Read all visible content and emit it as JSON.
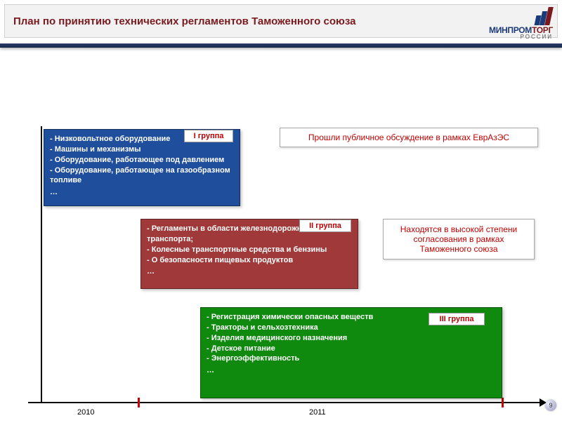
{
  "header": {
    "title": "План по принятию технических регламентов Таможенного союза"
  },
  "logo": {
    "line1a": "МИНПРОМ",
    "line1b": "ТОРГ",
    "sub": "РОССИИ"
  },
  "timeline": {
    "years": {
      "y2010": "2010",
      "y2011": "2011"
    }
  },
  "groups": {
    "g1": {
      "tag": "I группа",
      "items": [
        "Низковольтное оборудование",
        "Машины и механизмы",
        "Оборудование, работающее под давлением",
        "Оборудование, работающее на газообразном топливе"
      ],
      "more": "…",
      "status": "Прошли публичное обсуждение в рамках ЕврАзЭС",
      "bg": "#1f4e9c"
    },
    "g2": {
      "tag": "II группа",
      "items": [
        "Регламенты в области железнодорожного транспорта;",
        "Колесные транспортные средства и бензины",
        "О безопасности пищевых продуктов"
      ],
      "more": "…",
      "status": "Находятся в высокой степени согласования в рамках Таможенного союза",
      "bg": "#a03a3a"
    },
    "g3": {
      "tag": "III группа",
      "items": [
        "Регистрация химически опасных веществ",
        "Тракторы и сельхозтехника",
        "Изделия медицинского назначения",
        "Детское питание",
        "Энергоэффективность"
      ],
      "more": "…",
      "bg": "#0f8a0f"
    }
  },
  "page": {
    "num": "9"
  }
}
